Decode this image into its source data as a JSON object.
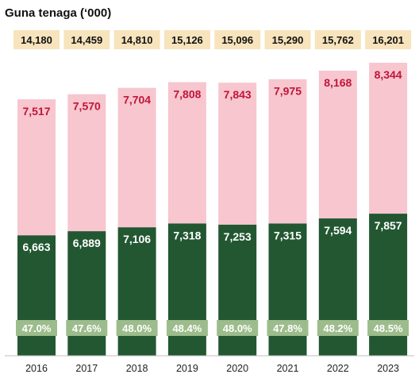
{
  "colors": {
    "top_segment": "#f7c6cf",
    "top_label": "#c0163a",
    "bottom_segment": "#225732",
    "bottom_label": "#ffffff",
    "total_box": "#f7e4bd",
    "pct_box": "#9cbc8c",
    "axis": "#bfbfbf"
  },
  "chart_data": {
    "type": "bar",
    "stacked": true,
    "title": "Guna tenaga (‘000)",
    "categories": [
      "2016",
      "2017",
      "2018",
      "2019",
      "2020",
      "2021",
      "2022",
      "2023"
    ],
    "totals": [
      "14,180",
      "14,459",
      "14,810",
      "15,126",
      "15,096",
      "15,290",
      "15,762",
      "16,201"
    ],
    "series": [
      {
        "values": [
          6663,
          6889,
          7106,
          7318,
          7253,
          7315,
          7594,
          7857
        ],
        "labels": [
          "6,663",
          "6,889",
          "7,106",
          "7,318",
          "7,253",
          "7,315",
          "7,594",
          "7,857"
        ]
      },
      {
        "values": [
          7517,
          7570,
          7704,
          7808,
          7843,
          7975,
          8168,
          8344
        ],
        "labels": [
          "7,517",
          "7,570",
          "7,704",
          "7,808",
          "7,843",
          "7,975",
          "8,168",
          "8,344"
        ]
      }
    ],
    "share_labels": [
      "47.0%",
      "47.6%",
      "48.0%",
      "48.4%",
      "48.0%",
      "47.8%",
      "48.2%",
      "48.5%"
    ],
    "ylim": [
      0,
      16201
    ],
    "grid": false,
    "legend": "none"
  }
}
